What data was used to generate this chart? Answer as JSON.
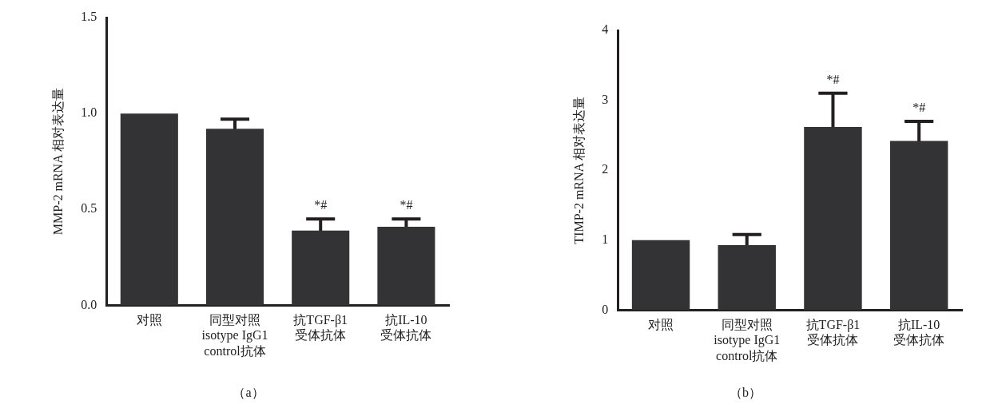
{
  "chart_data": [
    {
      "type": "bar",
      "ylabel": "MMP-2 mRNA 相对表达量",
      "categories": [
        "对照",
        "同型对照\nisotype IgG1\ncontrol抗体",
        "抗TGF-β1\n受体抗体",
        "抗IL-10\n受体抗体"
      ],
      "values": [
        1.0,
        0.92,
        0.39,
        0.41
      ],
      "errors": [
        null,
        0.05,
        0.06,
        0.04
      ],
      "color": "#333335",
      "ylim": [
        0,
        1.5
      ],
      "yticks": [
        {
          "value": 0,
          "label": "0.0"
        },
        0.5,
        {
          "value": 1,
          "label": "1.0"
        },
        1.5
      ],
      "grid": false,
      "legend": false,
      "annotations": [
        {
          "text": "*#",
          "x": "抗TGF-β1\n受体抗体",
          "y": 0.45
        },
        {
          "text": "*#",
          "x": "抗IL-10\n受体抗体",
          "y": 0.45
        },
        "（a）"
      ]
    },
    {
      "type": "bar",
      "ylabel": "TIMP-2 mRNA 相对表达量",
      "categories": [
        "对照",
        "同型对照\nisotype IgG1\ncontrol抗体",
        "抗TGF-β1\n受体抗体",
        "抗IL-10\n受体抗体"
      ],
      "values": [
        1.0,
        0.93,
        2.62,
        2.42
      ],
      "errors": [
        null,
        0.15,
        0.48,
        0.28
      ],
      "color": "#333335",
      "ylim": [
        0,
        4
      ],
      "yticks": [
        0,
        1,
        2,
        3,
        4
      ],
      "grid": false,
      "legend": false,
      "annotations": [
        {
          "text": "*#",
          "x": "抗TGF-β1\n受体抗体",
          "y": 3.1
        },
        {
          "text": "*#",
          "x": "抗IL-10\n受体抗体",
          "y": 2.7
        },
        "（b）"
      ]
    }
  ]
}
